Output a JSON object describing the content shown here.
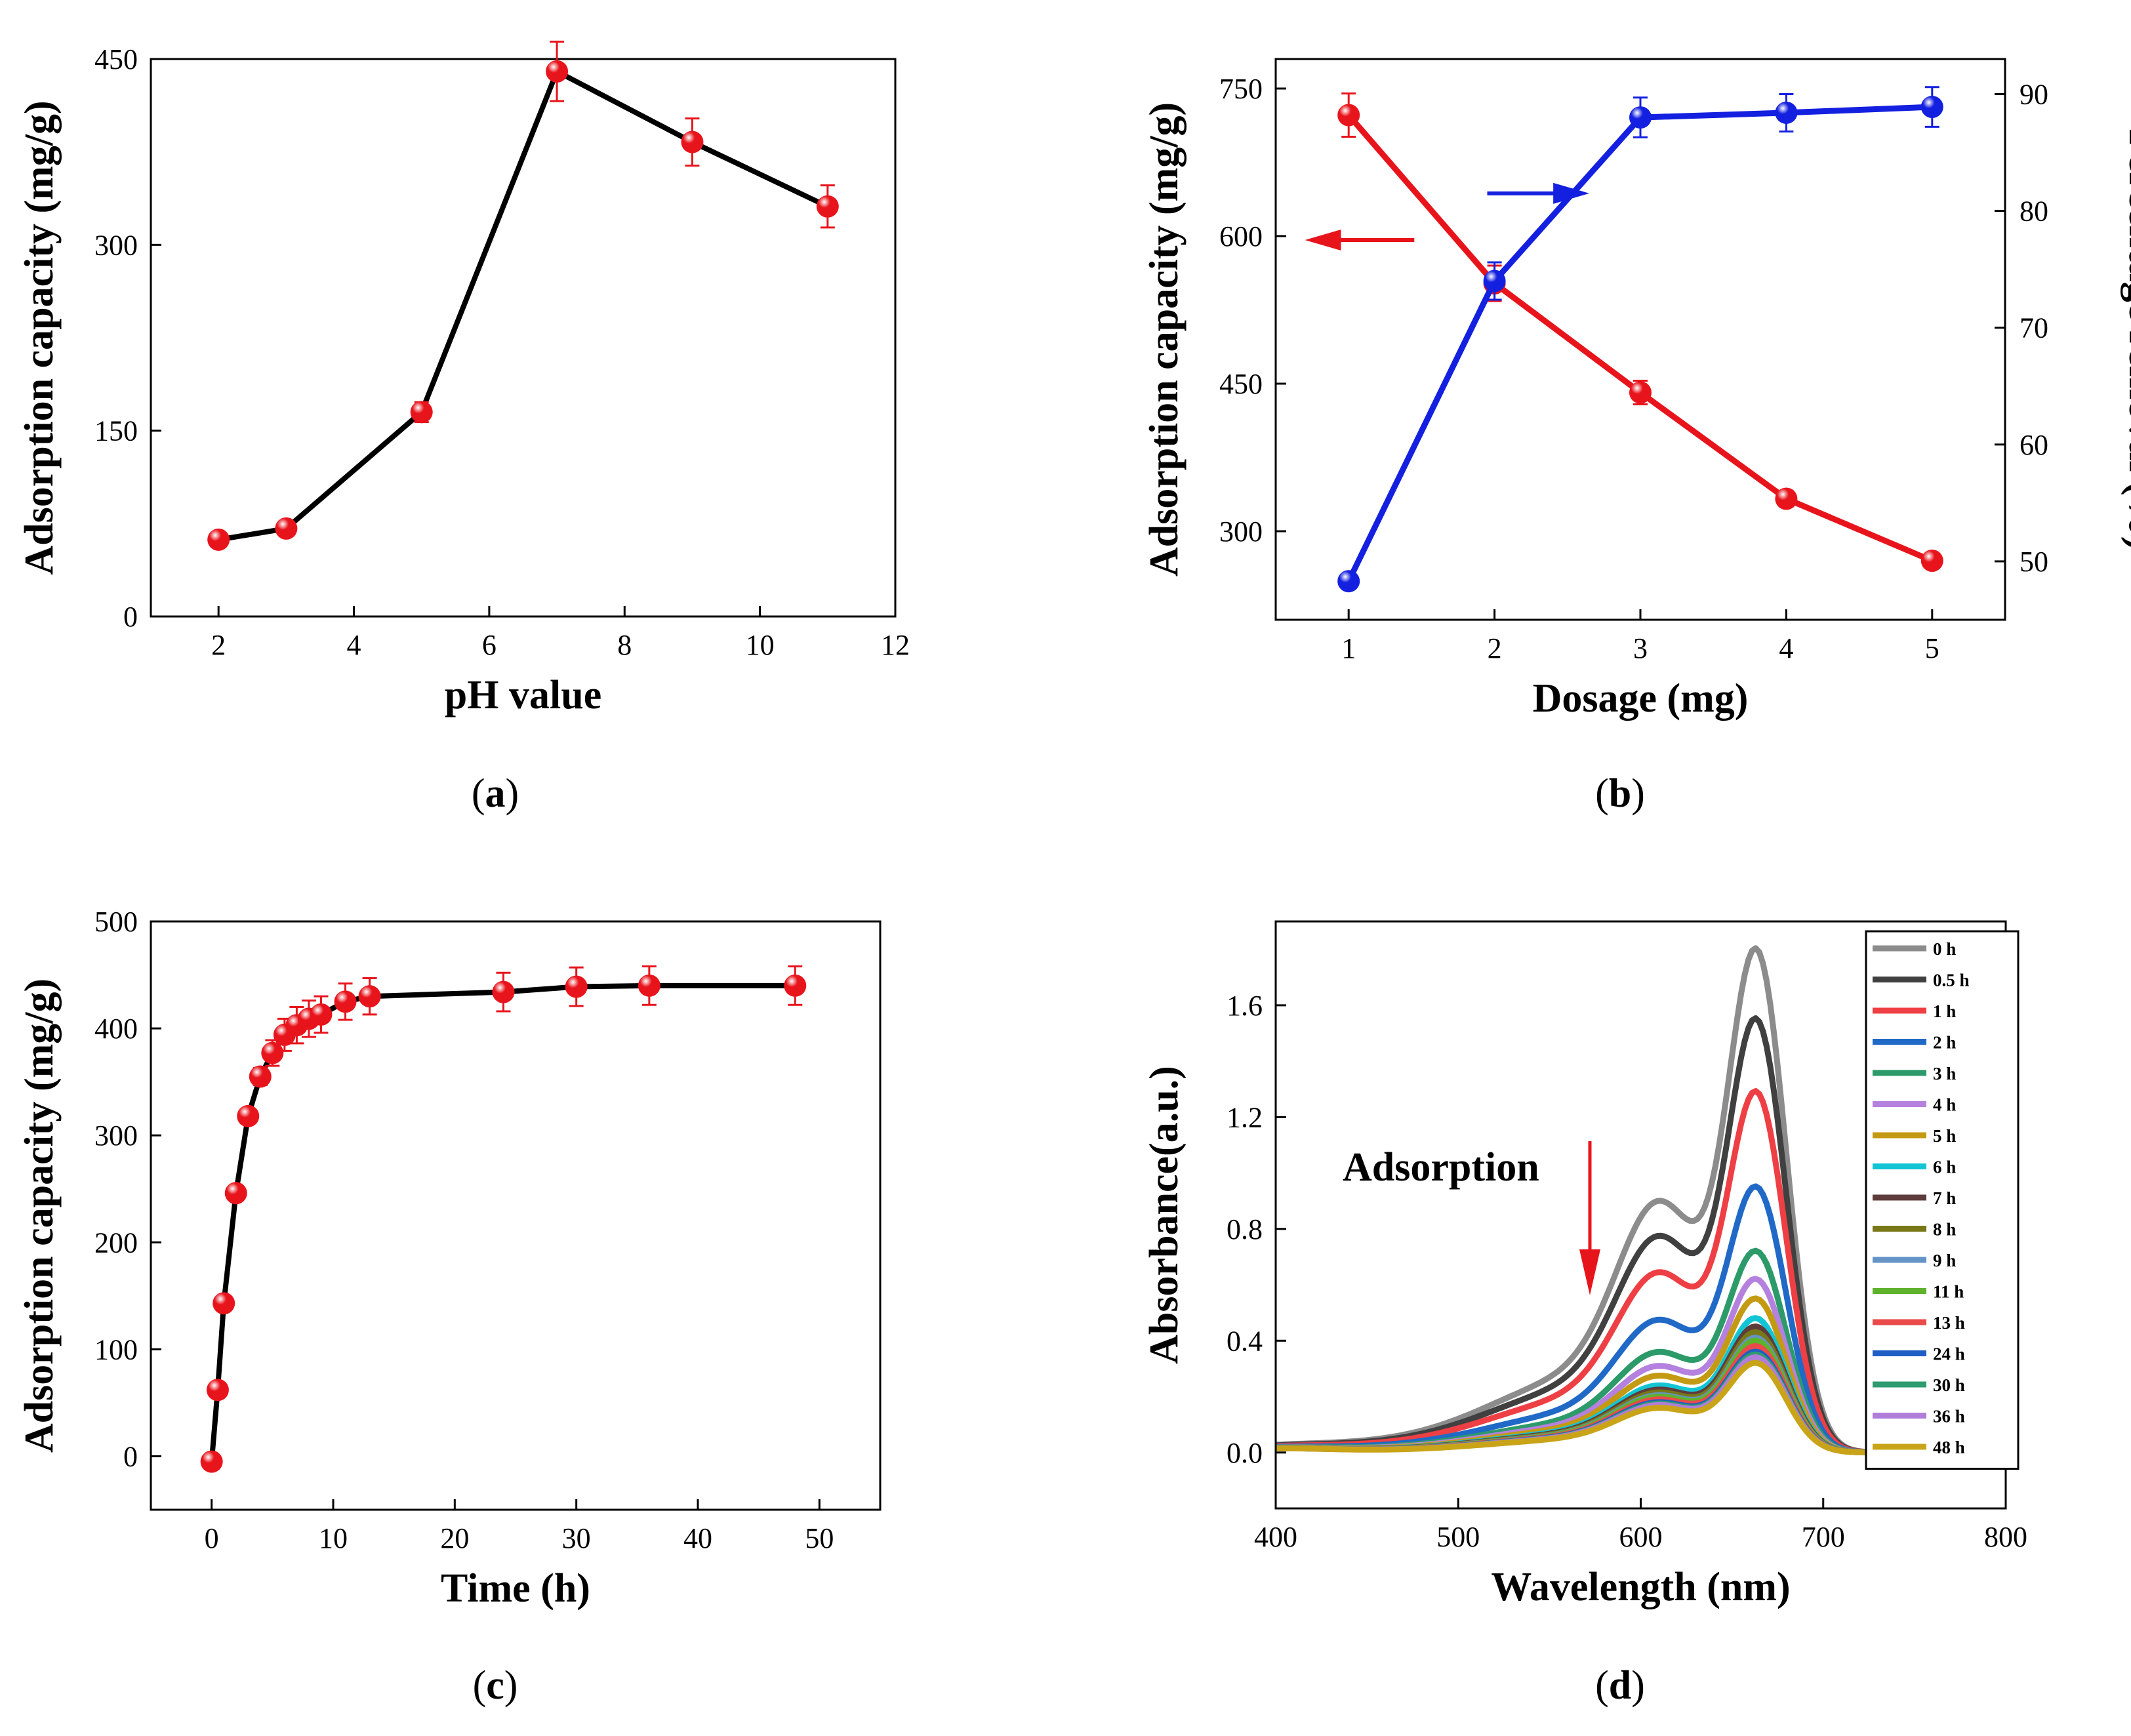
{
  "chart_data": [
    {
      "id": "a",
      "panel_label": "a",
      "type": "line",
      "xlabel": "pH value",
      "ylabel": "Adsorption capacity (mg/g)",
      "xlim": [
        1,
        12
      ],
      "ylim": [
        0,
        450
      ],
      "xticks": [
        2,
        4,
        6,
        8,
        10,
        12
      ],
      "yticks": [
        0,
        150,
        300,
        450
      ],
      "series": [
        {
          "name": "adsorption capacity",
          "line_color": "#000000",
          "marker_color": "#e8141c",
          "x": [
            2,
            3,
            5,
            7,
            9,
            11
          ],
          "y": [
            62,
            71,
            165,
            440,
            383,
            331
          ],
          "err": [
            6,
            6,
            8,
            24,
            19,
            17
          ]
        }
      ]
    },
    {
      "id": "b",
      "panel_label": "b",
      "type": "line",
      "xlabel": "Dosage (mg)",
      "ylabel": "Adsorption capacity (mg/g)",
      "ylabel_right": "Percentage removal (%)",
      "xlim": [
        0.5,
        5.5
      ],
      "ylim": [
        210,
        780
      ],
      "ylim_right": [
        45,
        93
      ],
      "xticks": [
        1,
        2,
        3,
        4,
        5
      ],
      "yticks": [
        300,
        450,
        600,
        750
      ],
      "yticks_right": [
        50,
        60,
        70,
        80,
        90
      ],
      "series": [
        {
          "name": "Adsorption capacity",
          "axis": "left",
          "color": "#e8141c",
          "x": [
            1,
            2,
            3,
            4,
            5
          ],
          "y": [
            723,
            552,
            441,
            333,
            270
          ],
          "err": [
            22,
            18,
            12,
            8,
            6
          ]
        },
        {
          "name": "Percentage removal",
          "axis": "right",
          "color": "#1420e0",
          "x": [
            1,
            2,
            3,
            4,
            5
          ],
          "y": [
            48.3,
            74.0,
            88.0,
            88.4,
            88.9
          ],
          "err": [
            0.6,
            1.6,
            1.7,
            1.6,
            1.7
          ]
        }
      ],
      "arrows": [
        {
          "direction": "left",
          "color": "#e8141c",
          "x_from": 1.45,
          "x_to": 0.7,
          "y": 596
        },
        {
          "direction": "right",
          "color": "#1420e0",
          "x_from": 1.95,
          "x_to": 2.65,
          "y_right": 81.5
        }
      ]
    },
    {
      "id": "c",
      "panel_label": "c",
      "type": "line",
      "xlabel": "Time (h)",
      "ylabel": "Adsorption capacity (mg/g)",
      "xlim": [
        -5,
        55
      ],
      "ylim": [
        -50,
        500
      ],
      "xticks": [
        0,
        10,
        20,
        30,
        40,
        50
      ],
      "yticks": [
        0,
        100,
        200,
        300,
        400,
        500
      ],
      "series": [
        {
          "name": "adsorption capacity",
          "line_color": "#000000",
          "marker_color": "#e8141c",
          "x": [
            0,
            0.5,
            1,
            2,
            3,
            4,
            5,
            6,
            7,
            8,
            9,
            11,
            13,
            24,
            30,
            36,
            48
          ],
          "y": [
            -5,
            62,
            143,
            246,
            318,
            355,
            377,
            394,
            403,
            409,
            413,
            425,
            430,
            434,
            439,
            440,
            440
          ],
          "err": [
            0,
            0,
            0,
            0,
            0,
            8,
            12,
            15,
            17,
            17,
            17,
            17,
            17,
            18,
            18,
            18,
            18
          ]
        }
      ]
    },
    {
      "id": "d",
      "panel_label": "d",
      "type": "line",
      "xlabel": "Wavelength (nm)",
      "ylabel": "Absorbance(a.u.)",
      "xlim": [
        400,
        800
      ],
      "ylim": [
        -0.2,
        1.9
      ],
      "xticks": [
        400,
        500,
        600,
        700,
        800
      ],
      "yticks": [
        0.0,
        0.4,
        0.8,
        1.2,
        1.6
      ],
      "ytick_labels": [
        "0.0",
        "0.4",
        "0.8",
        "1.2",
        "1.6"
      ],
      "annotation": {
        "text": "Adsorption",
        "arrow_color": "#e8141c"
      },
      "series": [
        {
          "name": "0 h",
          "color": "#8c8c8c",
          "peak": 1.8
        },
        {
          "name": "0.5 h",
          "color": "#404040",
          "peak": 1.55
        },
        {
          "name": "1 h",
          "color": "#ee3f44",
          "peak": 1.29
        },
        {
          "name": "2 h",
          "color": "#2069c7",
          "peak": 0.95
        },
        {
          "name": "3 h",
          "color": "#2d9a6a",
          "peak": 0.72
        },
        {
          "name": "4 h",
          "color": "#b481de",
          "peak": 0.62
        },
        {
          "name": "5 h",
          "color": "#c49a12",
          "peak": 0.55
        },
        {
          "name": "6 h",
          "color": "#12c5d4",
          "peak": 0.48
        },
        {
          "name": "7 h",
          "color": "#5e3c3c",
          "peak": 0.45
        },
        {
          "name": "8 h",
          "color": "#787818",
          "peak": 0.43
        },
        {
          "name": "9 h",
          "color": "#6493c6",
          "peak": 0.41
        },
        {
          "name": "11 h",
          "color": "#5fb22c",
          "peak": 0.4
        },
        {
          "name": "13 h",
          "color": "#ea4a4a",
          "peak": 0.38
        },
        {
          "name": "24 h",
          "color": "#1f5ec4",
          "peak": 0.36
        },
        {
          "name": "30 h",
          "color": "#2f9b70",
          "peak": 0.35
        },
        {
          "name": "36 h",
          "color": "#b07ed8",
          "peak": 0.34
        },
        {
          "name": "48 h",
          "color": "#c9a418",
          "peak": 0.32
        }
      ]
    }
  ]
}
